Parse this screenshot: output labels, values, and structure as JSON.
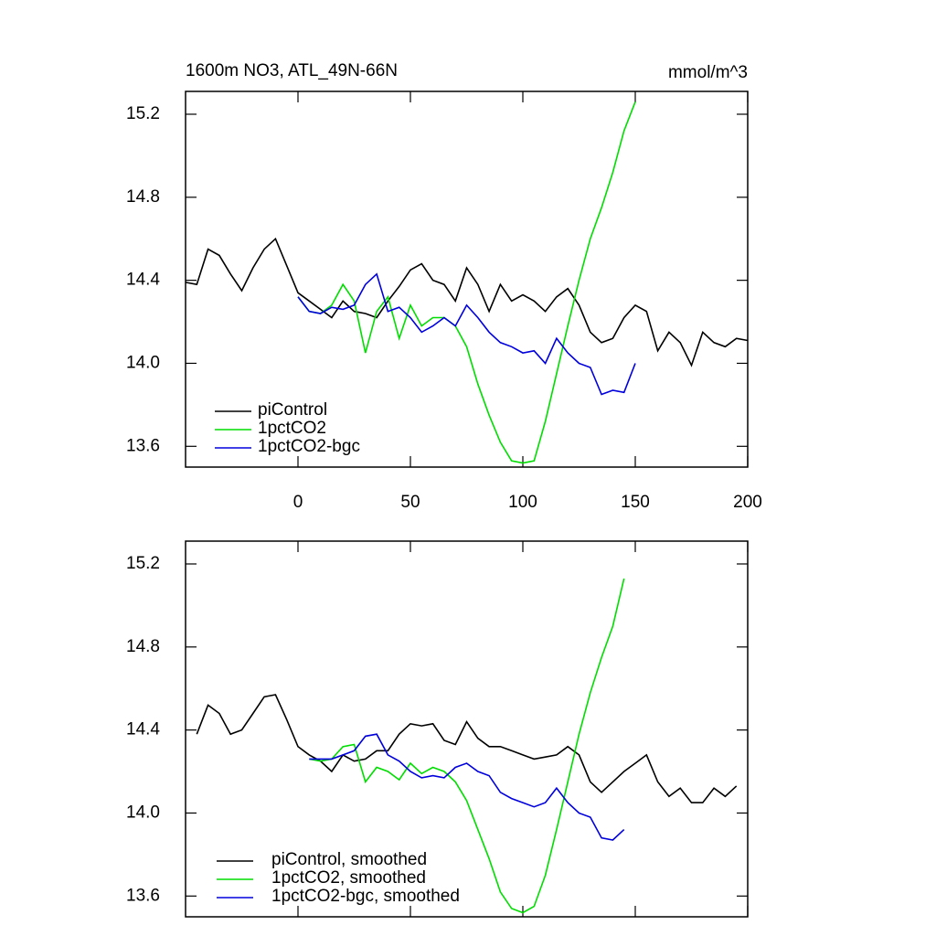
{
  "chart_data": [
    {
      "type": "line",
      "title": "1600m NO3, ATL_49N-66N",
      "units": "mmol/m^3",
      "x": [
        -50,
        -45,
        -40,
        -35,
        -30,
        -25,
        -20,
        -15,
        -10,
        -5,
        0,
        5,
        10,
        15,
        20,
        25,
        30,
        35,
        40,
        45,
        50,
        55,
        60,
        65,
        70,
        75,
        80,
        85,
        90,
        95,
        100,
        105,
        110,
        115,
        120,
        125,
        130,
        135,
        140,
        145,
        150,
        155,
        160,
        165,
        170,
        175,
        180,
        185,
        190,
        195,
        200
      ],
      "xlim": [
        -50,
        200
      ],
      "xticks": [
        0,
        50,
        100,
        150,
        200
      ],
      "xticklabels": true,
      "ylim": [
        13.5,
        15.31
      ],
      "yticks": [
        13.6,
        {
          "value": 14,
          "label": "14.0"
        },
        14.4,
        14.8,
        15.2
      ],
      "legend": "lower left",
      "series": [
        {
          "name": "piControl",
          "color": "#000000",
          "values": [
            14.39,
            14.38,
            14.55,
            14.52,
            14.43,
            14.35,
            14.46,
            14.55,
            14.6,
            14.47,
            14.34,
            14.3,
            14.26,
            14.22,
            14.3,
            14.25,
            14.24,
            14.22,
            14.3,
            14.37,
            14.45,
            14.48,
            14.4,
            14.38,
            14.3,
            14.46,
            14.38,
            14.25,
            14.38,
            14.3,
            14.33,
            14.3,
            14.25,
            14.32,
            14.36,
            14.28,
            14.15,
            14.1,
            14.12,
            14.22,
            14.28,
            14.25,
            14.06,
            14.15,
            14.1,
            13.99,
            14.15,
            14.1,
            14.08,
            14.12,
            14.11
          ]
        },
        {
          "name": "1pctCO2",
          "color": "#00dd00",
          "values": [
            null,
            null,
            null,
            null,
            null,
            null,
            null,
            null,
            null,
            null,
            14.32,
            14.25,
            14.24,
            14.28,
            14.38,
            14.3,
            14.05,
            14.25,
            14.32,
            14.12,
            14.28,
            14.18,
            14.22,
            14.22,
            14.18,
            14.08,
            13.9,
            13.75,
            13.62,
            13.53,
            13.52,
            13.53,
            13.72,
            13.95,
            14.18,
            14.4,
            14.6,
            14.75,
            14.92,
            15.12,
            15.26,
            null,
            null,
            null,
            null,
            null,
            null,
            null,
            null,
            null,
            null
          ]
        },
        {
          "name": "1pctCO2-bgc",
          "color": "#0000dd",
          "values": [
            null,
            null,
            null,
            null,
            null,
            null,
            null,
            null,
            null,
            null,
            14.32,
            14.25,
            14.24,
            14.27,
            14.26,
            14.28,
            14.38,
            14.43,
            14.25,
            14.27,
            14.22,
            14.15,
            14.18,
            14.22,
            14.18,
            14.28,
            14.22,
            14.15,
            14.1,
            14.08,
            14.05,
            14.06,
            14.0,
            14.12,
            14.05,
            14.0,
            13.98,
            13.85,
            13.87,
            13.86,
            14.0,
            null,
            null,
            null,
            null,
            null,
            null,
            null,
            null,
            null,
            null
          ]
        }
      ]
    },
    {
      "type": "line",
      "x": [
        -50,
        -45,
        -40,
        -35,
        -30,
        -25,
        -20,
        -15,
        -10,
        -5,
        0,
        5,
        10,
        15,
        20,
        25,
        30,
        35,
        40,
        45,
        50,
        55,
        60,
        65,
        70,
        75,
        80,
        85,
        90,
        95,
        100,
        105,
        110,
        115,
        120,
        125,
        130,
        135,
        140,
        145,
        150,
        155,
        160,
        165,
        170,
        175,
        180,
        185,
        190,
        195,
        200
      ],
      "xlim": [
        -50,
        200
      ],
      "xticks": [
        0,
        50,
        100,
        150,
        200
      ],
      "xticklabels": false,
      "ylim": [
        13.5,
        15.31
      ],
      "yticks": [
        13.6,
        {
          "value": 14,
          "label": "14.0"
        },
        14.4,
        14.8,
        15.2
      ],
      "legend": "lower left",
      "series": [
        {
          "name": "piControl, smoothed",
          "color": "#000000",
          "values": [
            null,
            14.38,
            14.52,
            14.48,
            14.38,
            14.4,
            14.48,
            14.56,
            14.57,
            14.45,
            14.32,
            14.28,
            14.25,
            14.2,
            14.28,
            14.25,
            14.26,
            14.3,
            14.3,
            14.38,
            14.43,
            14.42,
            14.43,
            14.35,
            14.33,
            14.44,
            14.36,
            14.32,
            14.32,
            14.3,
            14.28,
            14.26,
            14.27,
            14.28,
            14.32,
            14.28,
            14.15,
            14.1,
            14.15,
            14.2,
            14.24,
            14.28,
            14.15,
            14.08,
            14.12,
            14.05,
            14.05,
            14.12,
            14.08,
            14.13,
            null
          ]
        },
        {
          "name": "1pctCO2, smoothed",
          "color": "#00dd00",
          "values": [
            null,
            null,
            null,
            null,
            null,
            null,
            null,
            null,
            null,
            null,
            null,
            14.26,
            14.25,
            14.26,
            14.32,
            14.33,
            14.15,
            14.22,
            14.2,
            14.16,
            14.24,
            14.19,
            14.22,
            14.2,
            14.15,
            14.06,
            13.92,
            13.78,
            13.62,
            13.54,
            13.52,
            13.55,
            13.7,
            13.92,
            14.15,
            14.38,
            14.58,
            14.75,
            14.9,
            15.13,
            null,
            null,
            null,
            null,
            null,
            null,
            null,
            null,
            null,
            null,
            null
          ]
        },
        {
          "name": "1pctCO2-bgc, smoothed",
          "color": "#0000dd",
          "values": [
            null,
            null,
            null,
            null,
            null,
            null,
            null,
            null,
            null,
            null,
            null,
            14.26,
            14.26,
            14.26,
            14.28,
            14.3,
            14.37,
            14.38,
            14.28,
            14.25,
            14.2,
            14.17,
            14.18,
            14.17,
            14.22,
            14.24,
            14.2,
            14.18,
            14.1,
            14.07,
            14.05,
            14.03,
            14.05,
            14.12,
            14.05,
            14.0,
            13.98,
            13.88,
            13.87,
            13.92,
            null,
            null,
            null,
            null,
            null,
            null,
            null,
            null,
            null,
            null,
            null
          ]
        }
      ]
    }
  ]
}
